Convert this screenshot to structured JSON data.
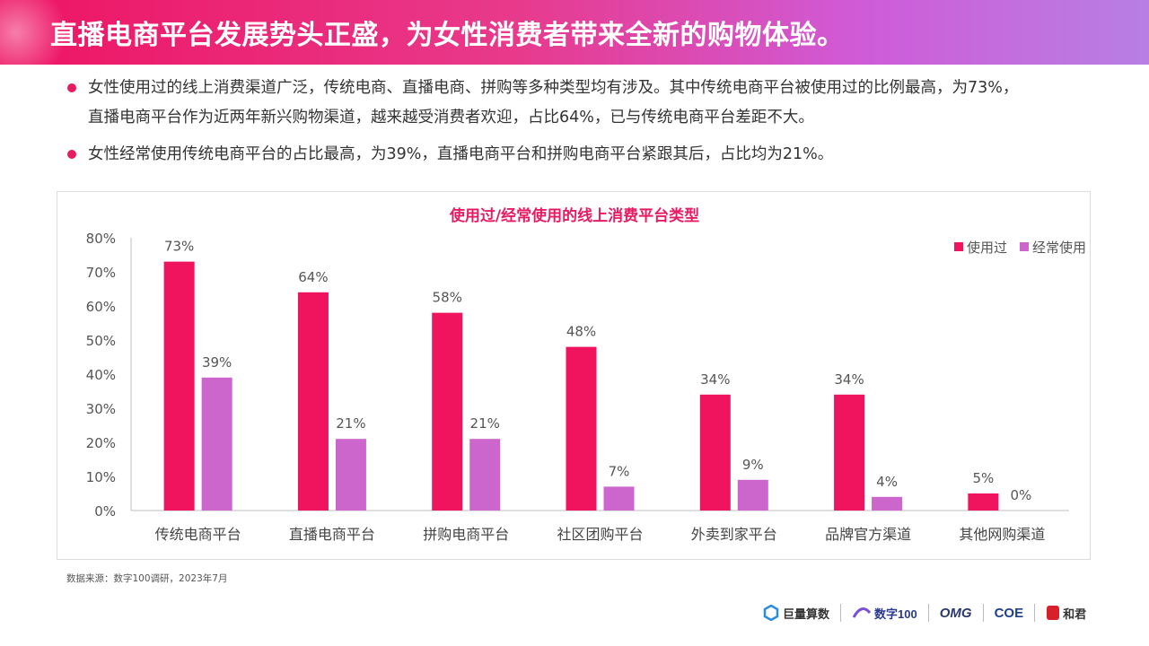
{
  "header": {
    "title": "直播电商平台发展势头正盛，为女性消费者带来全新的购物体验。"
  },
  "bullets": [
    {
      "line1": "女性使用过的线上消费渠道广泛，传统电商、直播电商、拼购等多种类型均有涉及。其中传统电商平台被使用过的比例最高，为73%，",
      "line2": "直播电商平台作为近两年新兴购物渠道，越来越受消费者欢迎，占比64%，已与传统电商平台差距不大。"
    },
    {
      "line1": "女性经常使用传统电商平台的占比最高，为39%，直播电商平台和拼购电商平台紧跟其后，占比均为21%。"
    }
  ],
  "source": "数据来源：数字100调研，2023年7月",
  "footer": {
    "logos": [
      "巨量算数",
      "数字100",
      "OMG",
      "COE",
      "和君"
    ]
  },
  "colors": {
    "accent": "#f0145f",
    "series2": "#cc66cc"
  },
  "chart_data": {
    "type": "bar",
    "title": "使用过/经常使用的线上消费平台类型",
    "categories": [
      "传统电商平台",
      "直播电商平台",
      "拼购电商平台",
      "社区团购平台",
      "外卖到家平台",
      "品牌官方渠道",
      "其他网购渠道"
    ],
    "series": [
      {
        "name": "使用过",
        "values": [
          73,
          64,
          58,
          48,
          34,
          34,
          5
        ],
        "color": "#f0145f"
      },
      {
        "name": "经常使用",
        "values": [
          39,
          21,
          21,
          7,
          9,
          4,
          0
        ],
        "color": "#cc66cc"
      }
    ],
    "ylim": [
      0,
      80
    ],
    "yticks": [
      "0%",
      "10%",
      "20%",
      "30%",
      "40%",
      "50%",
      "60%",
      "70%",
      "80%"
    ],
    "value_suffix": "%",
    "legend": "top-right",
    "grid": false
  }
}
